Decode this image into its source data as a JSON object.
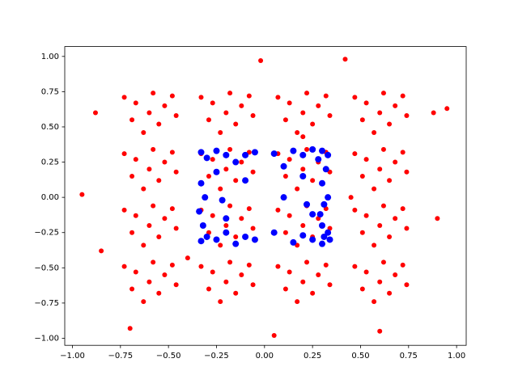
{
  "chart_data": {
    "type": "scatter",
    "xlim": [
      -1.04,
      1.05
    ],
    "ylim": [
      -1.05,
      1.07
    ],
    "xticks": [
      {
        "value": -1,
        "label": "−1.00"
      },
      {
        "value": -0.75,
        "label": "−0.75"
      },
      {
        "value": -0.5,
        "label": "−0.50"
      },
      {
        "value": -0.25,
        "label": "−0.25"
      },
      {
        "value": 0,
        "label": "0.00"
      },
      {
        "value": 0.25,
        "label": "0.25"
      },
      {
        "value": 0.5,
        "label": "0.50"
      },
      {
        "value": 0.75,
        "label": "0.75"
      },
      {
        "value": 1,
        "label": "1.00"
      }
    ],
    "yticks": [
      {
        "value": -1,
        "label": "−1.00"
      },
      {
        "value": -0.75,
        "label": "−0.75"
      },
      {
        "value": -0.5,
        "label": "−0.50"
      },
      {
        "value": -0.25,
        "label": "−0.25"
      },
      {
        "value": 0,
        "label": "0.00"
      },
      {
        "value": 0.25,
        "label": "0.25"
      },
      {
        "value": 0.5,
        "label": "0.50"
      },
      {
        "value": 0.75,
        "label": "0.75"
      },
      {
        "value": 1,
        "label": "1.00"
      }
    ],
    "series": [
      {
        "color": "#ff0000",
        "size": 3,
        "x": [
          -0.6,
          -0.52,
          -0.67,
          -0.55,
          -0.69,
          -0.46,
          -0.73,
          -0.58,
          -0.63,
          -0.48,
          -0.2,
          -0.12,
          -0.27,
          -0.15,
          -0.29,
          -0.06,
          -0.33,
          -0.18,
          -0.23,
          -0.08,
          0.2,
          0.28,
          0.13,
          0.25,
          0.11,
          0.34,
          0.07,
          0.22,
          0.17,
          0.32,
          0.6,
          0.68,
          0.53,
          0.65,
          0.51,
          0.74,
          0.47,
          0.62,
          0.57,
          0.72,
          -0.6,
          -0.52,
          -0.67,
          -0.55,
          -0.69,
          -0.46,
          -0.73,
          -0.58,
          -0.63,
          -0.48,
          -0.2,
          -0.12,
          -0.27,
          -0.15,
          -0.29,
          -0.06,
          -0.33,
          -0.18,
          -0.23,
          -0.08,
          0.2,
          0.28,
          0.13,
          0.25,
          0.11,
          0.34,
          0.07,
          0.22,
          0.17,
          0.32,
          0.6,
          0.68,
          0.53,
          0.65,
          0.51,
          0.74,
          0.47,
          0.62,
          0.57,
          0.72,
          -0.6,
          -0.52,
          -0.67,
          -0.55,
          -0.69,
          -0.46,
          -0.73,
          -0.58,
          -0.63,
          -0.48,
          -0.2,
          -0.12,
          -0.27,
          -0.15,
          -0.29,
          -0.06,
          -0.33,
          -0.18,
          -0.23,
          -0.08,
          0.2,
          0.28,
          0.13,
          0.25,
          0.11,
          0.34,
          0.07,
          0.22,
          0.17,
          0.32,
          0.6,
          0.68,
          0.53,
          0.65,
          0.51,
          0.74,
          0.47,
          0.62,
          0.57,
          0.72,
          -0.6,
          -0.52,
          -0.67,
          -0.55,
          -0.69,
          -0.46,
          -0.73,
          -0.58,
          -0.63,
          -0.48,
          -0.2,
          -0.12,
          -0.27,
          -0.15,
          -0.29,
          -0.06,
          -0.33,
          -0.18,
          -0.23,
          -0.08,
          0.2,
          0.28,
          0.13,
          0.25,
          0.11,
          0.34,
          0.07,
          0.22,
          0.17,
          0.32,
          0.6,
          0.68,
          0.53,
          0.65,
          0.51,
          0.74,
          0.47,
          0.62,
          0.57,
          0.72,
          -0.95,
          0.95,
          0.42,
          -0.85,
          0.9,
          -0.7,
          0.6,
          -0.02,
          0.05,
          0.88,
          -0.88,
          0.2,
          -0.4,
          0.45
        ],
        "y": [
          0.6,
          0.65,
          0.67,
          0.52,
          0.55,
          0.58,
          0.71,
          0.74,
          0.46,
          0.72,
          0.6,
          0.65,
          0.67,
          0.52,
          0.55,
          0.58,
          0.71,
          0.74,
          0.46,
          0.72,
          0.6,
          0.65,
          0.67,
          0.52,
          0.55,
          0.58,
          0.71,
          0.74,
          0.46,
          0.72,
          0.6,
          0.65,
          0.67,
          0.52,
          0.55,
          0.58,
          0.71,
          0.74,
          0.46,
          0.72,
          0.2,
          0.25,
          0.27,
          0.12,
          0.15,
          0.18,
          0.31,
          0.34,
          0.06,
          0.32,
          0.2,
          0.25,
          0.27,
          0.12,
          0.15,
          0.18,
          0.31,
          0.34,
          0.06,
          0.32,
          0.2,
          0.25,
          0.27,
          0.12,
          0.15,
          0.18,
          0.31,
          0.34,
          0.06,
          0.32,
          0.2,
          0.25,
          0.27,
          0.12,
          0.15,
          0.18,
          0.31,
          0.34,
          0.06,
          0.32,
          -0.2,
          -0.15,
          -0.13,
          -0.28,
          -0.25,
          -0.22,
          -0.09,
          -0.06,
          -0.34,
          -0.08,
          -0.2,
          -0.15,
          -0.13,
          -0.28,
          -0.25,
          -0.22,
          -0.09,
          -0.06,
          -0.34,
          -0.08,
          -0.2,
          -0.15,
          -0.13,
          -0.28,
          -0.25,
          -0.22,
          -0.09,
          -0.06,
          -0.34,
          -0.08,
          -0.2,
          -0.15,
          -0.13,
          -0.28,
          -0.25,
          -0.22,
          -0.09,
          -0.06,
          -0.34,
          -0.08,
          -0.6,
          -0.55,
          -0.53,
          -0.68,
          -0.65,
          -0.62,
          -0.49,
          -0.46,
          -0.74,
          -0.48,
          -0.6,
          -0.55,
          -0.53,
          -0.68,
          -0.65,
          -0.62,
          -0.49,
          -0.46,
          -0.74,
          -0.48,
          -0.6,
          -0.55,
          -0.53,
          -0.68,
          -0.65,
          -0.62,
          -0.49,
          -0.46,
          -0.74,
          -0.48,
          -0.6,
          -0.55,
          -0.53,
          -0.68,
          -0.65,
          -0.62,
          -0.49,
          -0.46,
          -0.74,
          -0.48,
          0.02,
          0.63,
          0.98,
          -0.38,
          -0.15,
          -0.93,
          -0.95,
          0.97,
          -0.98,
          0.6,
          0.6,
          0.43,
          -0.43,
          0.0
        ]
      },
      {
        "color": "#0000ff",
        "size": 4,
        "x": [
          -0.33,
          -0.3,
          -0.25,
          -0.2,
          -0.15,
          -0.1,
          -0.05,
          0.05,
          0.1,
          0.15,
          0.2,
          0.25,
          0.28,
          0.3,
          0.33,
          0.32,
          0.3,
          0.33,
          0.31,
          0.29,
          0.3,
          0.33,
          0.34,
          0.31,
          0.3,
          0.25,
          0.2,
          0.15,
          0.05,
          -0.05,
          -0.1,
          -0.15,
          -0.2,
          -0.25,
          -0.3,
          -0.33,
          -0.32,
          -0.34,
          -0.31,
          -0.33,
          -0.2,
          -0.25,
          0.2,
          0.25,
          0.1,
          -0.1,
          0.22,
          -0.22
        ],
        "y": [
          0.32,
          0.28,
          0.33,
          0.3,
          0.25,
          0.3,
          0.32,
          0.31,
          0.22,
          0.33,
          0.3,
          0.34,
          0.27,
          0.33,
          0.3,
          0.2,
          0.1,
          0.0,
          -0.05,
          -0.12,
          -0.2,
          -0.25,
          -0.3,
          -0.28,
          -0.33,
          -0.3,
          -0.27,
          -0.32,
          -0.25,
          -0.3,
          -0.28,
          -0.33,
          -0.25,
          -0.3,
          -0.28,
          -0.31,
          -0.2,
          -0.1,
          0.0,
          0.1,
          -0.15,
          0.18,
          0.15,
          -0.12,
          0.0,
          0.12,
          -0.05,
          -0.02
        ]
      }
    ]
  }
}
